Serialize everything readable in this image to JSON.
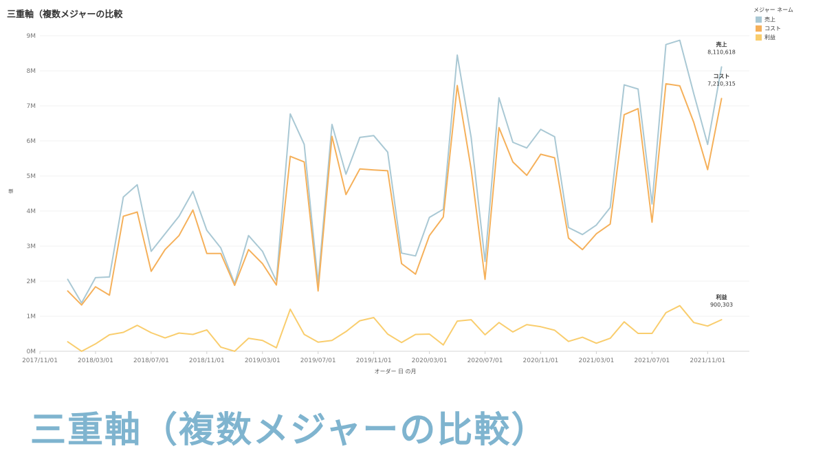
{
  "chart_title": "三重軸（複数メジャーの比較",
  "caption": "三重軸（複数メジャーの比較）",
  "legend": {
    "title": "メジャー ネーム",
    "items": [
      {
        "label": "売上",
        "color": "#a9c8d4"
      },
      {
        "label": "コスト",
        "color": "#f5b05a"
      },
      {
        "label": "利益",
        "color": "#f9cd6d"
      }
    ]
  },
  "chart_data": {
    "type": "line",
    "xlabel": "オーダー 日 の月",
    "ylabel": "値",
    "ylim": [
      0,
      9000000
    ],
    "y_ticks": [
      "0M",
      "1M",
      "2M",
      "3M",
      "4M",
      "5M",
      "6M",
      "7M",
      "8M",
      "9M"
    ],
    "x_range": [
      "2017-11-01",
      "2022-02-01"
    ],
    "x_ticks": [
      "2017/11/01",
      "2018/03/01",
      "2018/07/01",
      "2018/11/01",
      "2019/03/01",
      "2019/07/01",
      "2019/11/01",
      "2020/03/01",
      "2020/07/01",
      "2020/11/01",
      "2021/03/01",
      "2021/07/01",
      "2021/11/01"
    ],
    "x": [
      "2018-01",
      "2018-02",
      "2018-03",
      "2018-04",
      "2018-05",
      "2018-06",
      "2018-07",
      "2018-08",
      "2018-09",
      "2018-10",
      "2018-11",
      "2018-12",
      "2019-01",
      "2019-02",
      "2019-03",
      "2019-04",
      "2019-05",
      "2019-06",
      "2019-07",
      "2019-08",
      "2019-09",
      "2019-10",
      "2019-11",
      "2019-12",
      "2020-01",
      "2020-02",
      "2020-03",
      "2020-04",
      "2020-05",
      "2020-06",
      "2020-07",
      "2020-08",
      "2020-09",
      "2020-10",
      "2020-11",
      "2020-12",
      "2021-01",
      "2021-02",
      "2021-03",
      "2021-04",
      "2021-05",
      "2021-06",
      "2021-07",
      "2021-08",
      "2021-09",
      "2021-10",
      "2021-11",
      "2021-12"
    ],
    "series": [
      {
        "name": "売上",
        "color": "#a9c8d4",
        "values": [
          2050000,
          1380000,
          2100000,
          2120000,
          4400000,
          4750000,
          2850000,
          3350000,
          3850000,
          4560000,
          3450000,
          2950000,
          1930000,
          3300000,
          2850000,
          2000000,
          6770000,
          5900000,
          1950000,
          6470000,
          5050000,
          6100000,
          6150000,
          5680000,
          2800000,
          2720000,
          3820000,
          4050000,
          8450000,
          6100000,
          2560000,
          7230000,
          5960000,
          5800000,
          6330000,
          6120000,
          3530000,
          3330000,
          3600000,
          4100000,
          7600000,
          7480000,
          4200000,
          8750000,
          8870000,
          7350000,
          5900000,
          8110618
        ],
        "end_label": {
          "name": "売上",
          "value": "8,110,618"
        }
      },
      {
        "name": "コスト",
        "color": "#f5b05a",
        "values": [
          1720000,
          1320000,
          1840000,
          1600000,
          3850000,
          3970000,
          2280000,
          2900000,
          3300000,
          4030000,
          2790000,
          2790000,
          1880000,
          2900000,
          2500000,
          1890000,
          5560000,
          5400000,
          1720000,
          6130000,
          4470000,
          5200000,
          5170000,
          5150000,
          2500000,
          2200000,
          3300000,
          3830000,
          7580000,
          5200000,
          2050000,
          6380000,
          5400000,
          5020000,
          5620000,
          5520000,
          3230000,
          2900000,
          3350000,
          3630000,
          6750000,
          6920000,
          3680000,
          7630000,
          7570000,
          6530000,
          5180000,
          7210315
        ],
        "end_label": {
          "name": "コスト",
          "value": "7,210,315"
        }
      },
      {
        "name": "利益",
        "color": "#f9cd6d",
        "values": [
          270000,
          0,
          210000,
          470000,
          540000,
          740000,
          530000,
          380000,
          520000,
          480000,
          610000,
          120000,
          0,
          370000,
          310000,
          100000,
          1200000,
          480000,
          260000,
          310000,
          560000,
          870000,
          960000,
          490000,
          250000,
          480000,
          490000,
          180000,
          860000,
          900000,
          470000,
          820000,
          550000,
          760000,
          700000,
          600000,
          280000,
          400000,
          230000,
          370000,
          840000,
          510000,
          510000,
          1100000,
          1300000,
          820000,
          720000,
          900303
        ],
        "end_label": {
          "name": "利益",
          "value": "900,303"
        }
      }
    ]
  }
}
